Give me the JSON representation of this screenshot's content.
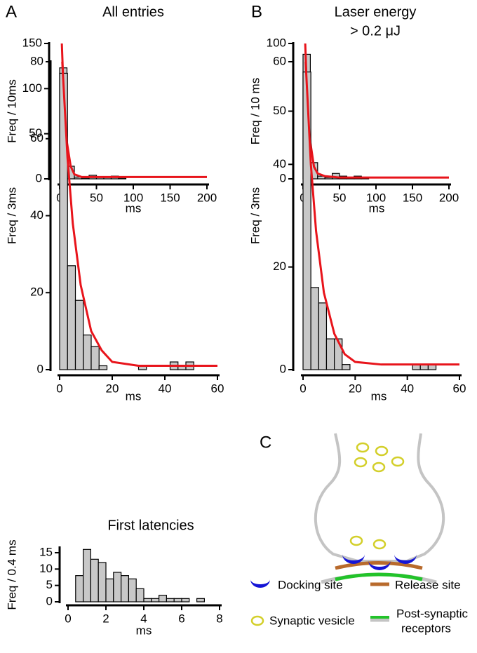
{
  "panel_labels": [
    "A",
    "B",
    "C"
  ],
  "chart_data": [
    {
      "type": "histogram",
      "title": [
        "All entries"
      ],
      "ylabel": "Freq / 10ms",
      "xlabel": "ms",
      "bins": [
        0,
        10,
        20,
        30,
        40,
        50,
        60,
        70,
        80,
        90
      ],
      "values": [
        123,
        14,
        2,
        1,
        4,
        2,
        2,
        3,
        1
      ],
      "color": "#c8c8c8",
      "xlim": [
        0,
        200
      ],
      "xticks": [
        0,
        50,
        100,
        150,
        200
      ],
      "ylim": [
        0,
        150
      ],
      "yticks": [
        0,
        50,
        100,
        150
      ],
      "fit_color": "#e8141b",
      "fit_x": [
        3,
        5,
        7,
        10,
        15,
        20,
        30,
        50,
        100,
        200
      ],
      "fit_y": [
        150,
        105,
        72,
        40,
        14,
        5,
        2,
        2,
        2,
        2
      ]
    },
    {
      "type": "histogram",
      "ylabel": "Freq / 3ms",
      "xlabel": "ms",
      "bins": [
        0,
        3,
        6,
        9,
        12,
        15,
        18,
        21,
        24,
        27,
        30,
        33,
        36,
        39,
        42,
        45,
        48,
        51
      ],
      "values": [
        77,
        27,
        18,
        9,
        6,
        1,
        0,
        0,
        0,
        0,
        1,
        0,
        0,
        0,
        2,
        1,
        2
      ],
      "color": "#c8c8c8",
      "xlim": [
        0,
        60
      ],
      "xticks": [
        0,
        20,
        40,
        60
      ],
      "ylim": [
        0,
        80
      ],
      "yticks": [
        0,
        20,
        40,
        60,
        80
      ],
      "fit_color": "#e8141b",
      "fit_x": [
        1,
        3,
        5,
        8,
        12,
        16,
        20,
        30,
        60
      ],
      "fit_y": [
        80,
        55,
        38,
        22,
        10,
        5,
        2,
        1,
        1
      ]
    },
    {
      "type": "histogram",
      "title": [
        "Laser energy",
        "> 0.2 μJ"
      ],
      "ylabel": "Freq / 10 ms",
      "xlabel": "ms",
      "bins": [
        0,
        10,
        20,
        30,
        40,
        50,
        60,
        70,
        80,
        90
      ],
      "values": [
        92,
        12,
        2,
        1,
        4,
        2,
        1,
        2,
        1
      ],
      "color": "#c8c8c8",
      "xlim": [
        0,
        200
      ],
      "xticks": [
        0,
        50,
        100,
        150,
        200
      ],
      "ylim": [
        0,
        100
      ],
      "yticks": [
        0,
        50,
        100
      ],
      "fit_color": "#e8141b",
      "fit_x": [
        3,
        5,
        7,
        10,
        15,
        20,
        30,
        50,
        100,
        200
      ],
      "fit_y": [
        100,
        70,
        48,
        27,
        9,
        4,
        2,
        1,
        1,
        1
      ]
    },
    {
      "type": "histogram",
      "ylabel": "Freq / 3ms",
      "xlabel": "ms",
      "bins": [
        0,
        3,
        6,
        9,
        12,
        15,
        18,
        21,
        24,
        27,
        30,
        33,
        36,
        39,
        42,
        45,
        48,
        51
      ],
      "values": [
        58,
        16,
        13,
        6,
        6,
        1,
        0,
        0,
        0,
        0,
        0,
        0,
        0,
        0,
        1,
        1,
        1
      ],
      "color": "#c8c8c8",
      "xlim": [
        0,
        60
      ],
      "xticks": [
        0,
        20,
        40,
        60
      ],
      "ylim": [
        0,
        60
      ],
      "yticks": [
        0,
        20,
        40,
        60
      ],
      "fit_color": "#e8141b",
      "fit_x": [
        1,
        3,
        5,
        8,
        12,
        16,
        20,
        30,
        60
      ],
      "fit_y": [
        60,
        40,
        27,
        15,
        7,
        3,
        1.5,
        1,
        1
      ]
    },
    {
      "type": "histogram",
      "title": [
        "First latencies"
      ],
      "ylabel": "Freq / 0.4 ms",
      "xlabel": "ms",
      "bins": [
        0.4,
        0.8,
        1.2,
        1.6,
        2.0,
        2.4,
        2.8,
        3.2,
        3.6,
        4.0,
        4.4,
        4.8,
        5.2,
        5.6,
        6.0,
        6.4,
        6.8,
        7.2
      ],
      "values": [
        8,
        16,
        13,
        12,
        7,
        9,
        8,
        7,
        4,
        1,
        1,
        2,
        1,
        1,
        1,
        0,
        1
      ],
      "color": "#c8c8c8",
      "xlim": [
        0,
        8
      ],
      "xticks": [
        0,
        2,
        4,
        6,
        8
      ],
      "ylim": [
        0,
        16.5
      ],
      "yticks": [
        0,
        5,
        10,
        15
      ]
    }
  ],
  "diagram": {
    "legend": [
      "Docking site",
      "Release site",
      "Synaptic vesicle",
      "Post-synaptic",
      "receptors"
    ]
  }
}
